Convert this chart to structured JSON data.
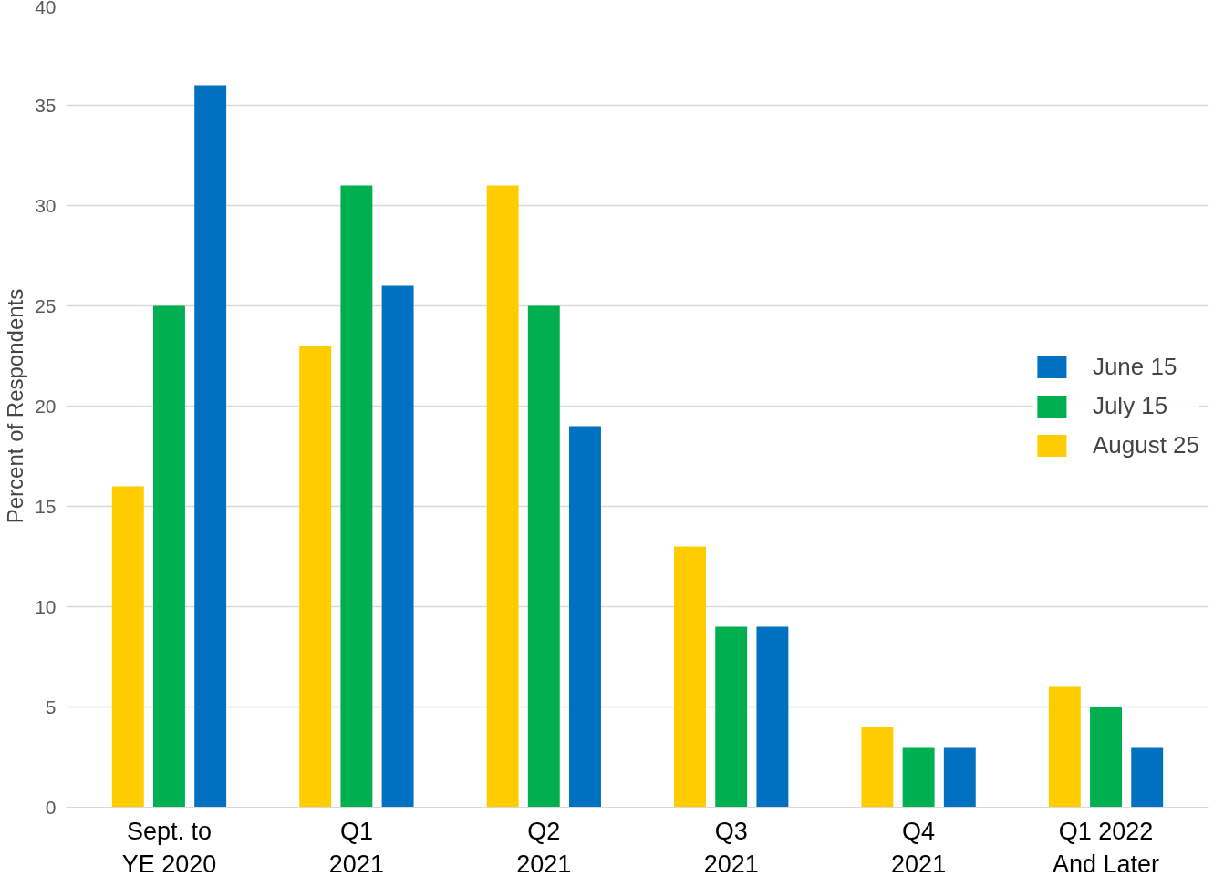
{
  "chart_data": {
    "type": "bar",
    "ylabel": "Percent of Respondents",
    "categories": [
      "Sept. to\nYE 2020",
      "Q1\n2021",
      "Q2\n2021",
      "Q3\n2021",
      "Q4\n2021",
      "Q1 2022\nAnd Later"
    ],
    "series": [
      {
        "name": "August 25",
        "color": "#ffcc00",
        "values": [
          16,
          23,
          31,
          13,
          4,
          6
        ]
      },
      {
        "name": "July 15",
        "color": "#00b050",
        "values": [
          25,
          31,
          25,
          9,
          3,
          5
        ]
      },
      {
        "name": "June 15",
        "color": "#0070c0",
        "values": [
          36,
          26,
          19,
          9,
          3,
          3
        ]
      }
    ],
    "ylim": [
      0,
      40
    ],
    "yticks": [
      0,
      5,
      10,
      15,
      20,
      25,
      30,
      35,
      40
    ],
    "grid": "y",
    "legend": "right"
  }
}
